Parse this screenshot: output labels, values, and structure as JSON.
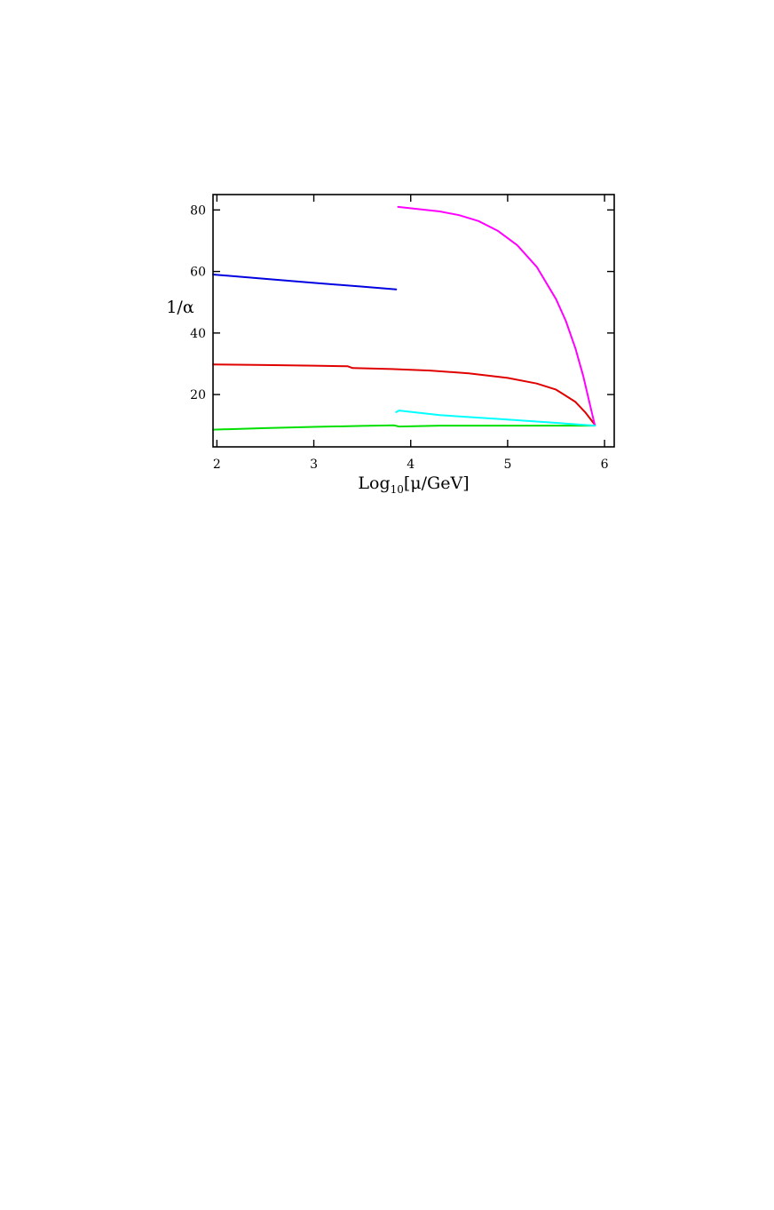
{
  "chart_data": {
    "type": "line",
    "xlabel": "Log10[μ/GeV]",
    "xlabel_parts": {
      "main": "Log",
      "sub": "10",
      "rest": "[μ/GeV]"
    },
    "ylabel": "1/α",
    "xlim": [
      1.96,
      6.1
    ],
    "ylim": [
      3,
      85
    ],
    "x_ticks": [
      2,
      3,
      4,
      5,
      6
    ],
    "x_tick_labels": [
      "2",
      "3",
      "4",
      "5",
      "6"
    ],
    "y_ticks": [
      20,
      40,
      60,
      80
    ],
    "y_tick_labels": [
      "20",
      "40",
      "60",
      "80"
    ],
    "grid": false,
    "legend": "none",
    "series": [
      {
        "color": "#0000e0",
        "points": [
          [
            1.96,
            59.0
          ],
          [
            2.5,
            57.6
          ],
          [
            3.0,
            56.3
          ],
          [
            3.5,
            55.1
          ],
          [
            3.85,
            54.2
          ]
        ]
      },
      {
        "color": "#e00000",
        "points": [
          [
            1.96,
            29.8
          ],
          [
            2.5,
            29.6
          ],
          [
            3.0,
            29.4
          ],
          [
            3.35,
            29.2
          ],
          [
            3.4,
            28.6
          ],
          [
            3.8,
            28.3
          ],
          [
            4.2,
            27.8
          ],
          [
            4.6,
            26.9
          ],
          [
            5.0,
            25.4
          ],
          [
            5.3,
            23.6
          ],
          [
            5.5,
            21.6
          ],
          [
            5.7,
            17.6
          ],
          [
            5.8,
            14.3
          ],
          [
            5.9,
            10.2
          ]
        ]
      },
      {
        "color": "#00e000",
        "points": [
          [
            1.96,
            8.6
          ],
          [
            2.5,
            9.1
          ],
          [
            3.0,
            9.5
          ],
          [
            3.5,
            9.8
          ],
          [
            3.83,
            10.0
          ],
          [
            3.88,
            9.6
          ],
          [
            4.3,
            9.9
          ],
          [
            5.0,
            9.9
          ],
          [
            5.5,
            9.9
          ],
          [
            5.9,
            9.9
          ]
        ]
      },
      {
        "color": "#ff00ff",
        "points": [
          [
            3.87,
            81.0
          ],
          [
            4.1,
            80.2
          ],
          [
            4.3,
            79.5
          ],
          [
            4.5,
            78.3
          ],
          [
            4.7,
            76.4
          ],
          [
            4.9,
            73.2
          ],
          [
            5.1,
            68.5
          ],
          [
            5.3,
            61.5
          ],
          [
            5.5,
            51.0
          ],
          [
            5.6,
            44.0
          ],
          [
            5.7,
            35.0
          ],
          [
            5.78,
            26.0
          ],
          [
            5.84,
            18.0
          ],
          [
            5.9,
            10.0
          ]
        ]
      },
      {
        "color": "#00ffff",
        "points": [
          [
            3.85,
            14.3
          ],
          [
            3.88,
            14.8
          ],
          [
            4.3,
            13.3
          ],
          [
            5.0,
            11.9
          ],
          [
            5.5,
            10.8
          ],
          [
            5.9,
            9.9
          ]
        ]
      }
    ]
  }
}
